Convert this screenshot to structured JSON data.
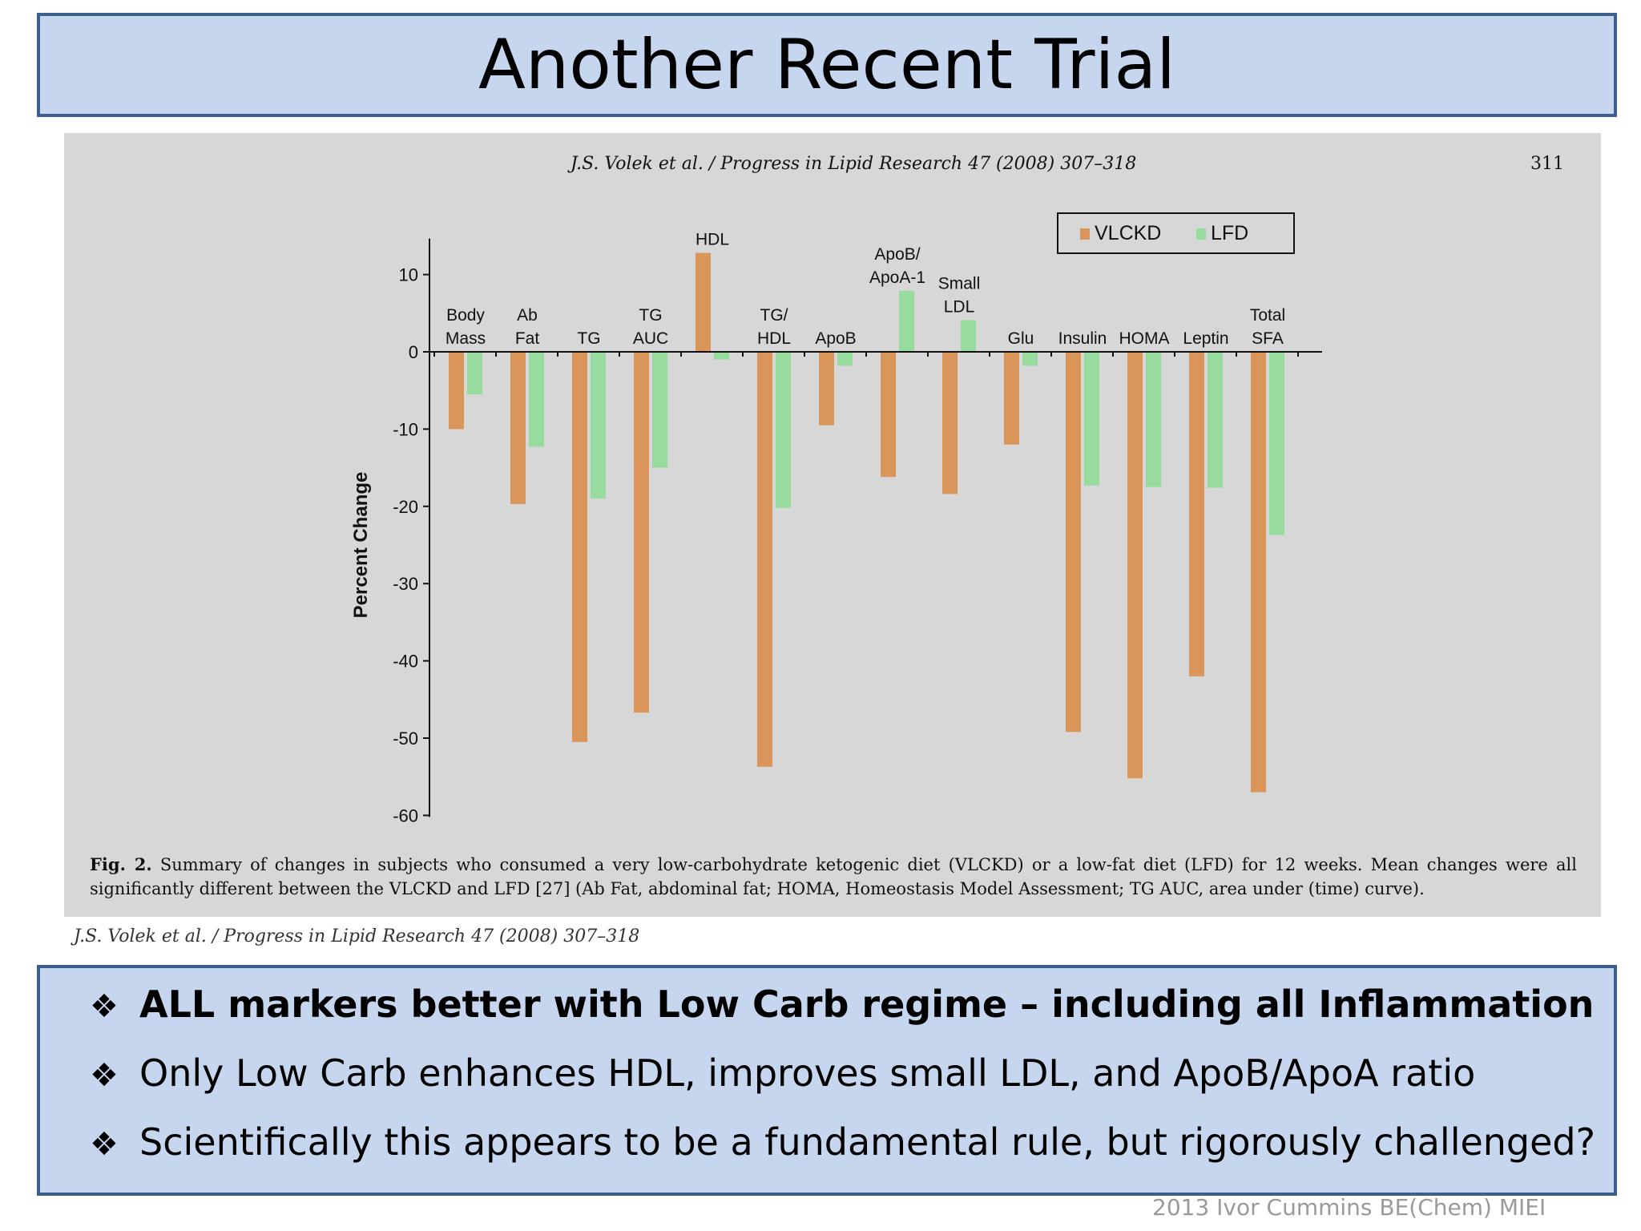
{
  "slide": {
    "title": "Another Recent Trial",
    "citation": "J.S. Volek et al. / Progress in Lipid Research 47 (2008) 307–318",
    "footer": "2013 Ivor Cummins BE(Chem) MIEI"
  },
  "figure": {
    "journal_header": "J.S. Volek et al. / Progress in Lipid Research 47 (2008) 307–318",
    "page_number": "311",
    "caption_label": "Fig. 2.",
    "caption_text": "Summary of changes in subjects who consumed a very low-carbohydrate ketogenic diet (VLCKD) or a low-fat diet (LFD) for 12 weeks. Mean changes were all significantly different between the VLCKD and LFD [27] (Ab Fat, abdominal fat; HOMA, Homeostasis Model Assessment; TG AUC, area under (time) curve)."
  },
  "bullets": [
    {
      "marker": "❖",
      "text": "ALL markers better with Low Carb regime – including all Inflammation"
    },
    {
      "marker": "❖",
      "text": "Only Low Carb enhances HDL, improves small LDL, and ApoB/ApoA ratio"
    },
    {
      "marker": "❖",
      "text": "Scientifically this appears to be a fundamental rule, but rigorously challenged?"
    }
  ],
  "chart_data": {
    "type": "bar",
    "ylabel": "Percent Change",
    "ylim": [
      -60,
      10
    ],
    "yticks": [
      10,
      0,
      -10,
      -20,
      -30,
      -40,
      -50,
      -60
    ],
    "legend_position": "top-right",
    "categories": [
      [
        "Body",
        "Mass"
      ],
      [
        "Ab",
        "Fat"
      ],
      [
        "TG"
      ],
      [
        "TG",
        "AUC"
      ],
      [
        "HDL"
      ],
      [
        "TG/",
        "HDL"
      ],
      [
        "ApoB"
      ],
      [
        "ApoB/",
        "ApoA-1"
      ],
      [
        "Small",
        "LDL"
      ],
      [
        "Glu"
      ],
      [
        "Insulin"
      ],
      [
        "HOMA"
      ],
      [
        "Leptin"
      ],
      [
        "Total",
        "SFA"
      ]
    ],
    "series": [
      {
        "name": "VLCKD",
        "color": "#d9955a",
        "values": [
          -10,
          -19.7,
          -50.5,
          -46.7,
          12.8,
          -53.7,
          -9.5,
          -16.2,
          -18.4,
          -12,
          -49.2,
          -55.2,
          -42,
          -57
        ]
      },
      {
        "name": "LFD",
        "color": "#97dc9e",
        "values": [
          -5.5,
          -12.3,
          -19,
          -15,
          -1,
          -20.2,
          -1.8,
          7.9,
          4.1,
          -1.8,
          -17.3,
          -17.5,
          -17.6,
          -23.7
        ]
      }
    ]
  }
}
